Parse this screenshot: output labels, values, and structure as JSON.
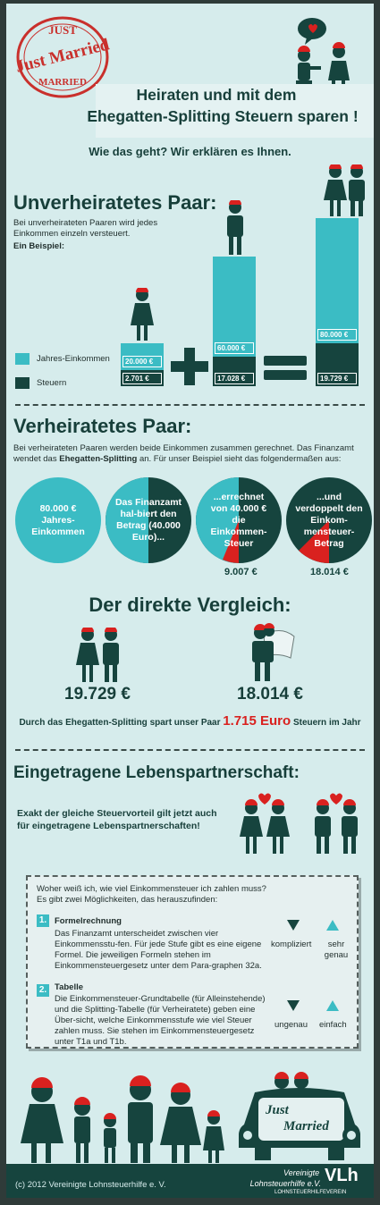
{
  "header": {
    "stamp_line1": "JUST",
    "stamp_line2": "Just Married",
    "stamp_line3": "MARRIED",
    "title_line1": "Heiraten und mit dem",
    "title_line2": "Ehegatten-Splitting Steuern sparen !",
    "subtitle": "Wie das geht? Wir erklären es Ihnen."
  },
  "unmarried": {
    "heading": "Unverheiratetes Paar:",
    "intro": "Bei unverheirateten Paaren wird jedes Einkommen einzeln versteuert.",
    "example": "Ein Beispiel:",
    "legend_income": "Jahres-Einkommen",
    "legend_tax": "Steuern",
    "bars": [
      {
        "income": "20.000 €",
        "tax": "2.701 €"
      },
      {
        "income": "60.000 €",
        "tax": "17.028 €"
      },
      {
        "income": "80.000 €",
        "tax": "19.729 €"
      }
    ]
  },
  "married": {
    "heading": "Verheiratetes Paar:",
    "intro_1": "Bei verheirateten Paaren werden beide Einkommen zusammen gerechnet. Das Finanzamt wendet das ",
    "intro_bold": "Ehegatten-Splitting",
    "intro_2": " an. Für unser Beispiel sieht das folgendermaßen aus:",
    "circle1": "80.000 € Jahres-Einkommen",
    "circle2": "Das Finanzamt hal-biert den Betrag (40.000 Euro)...",
    "circle3": "...errechnet von 40.000 € die Einkommen-Steuer",
    "circle4": "...und verdoppelt den Einkom-mensteuer-Betrag",
    "value3": "9.007 €",
    "value4": "18.014 €"
  },
  "comparison": {
    "heading": "Der direkte Vergleich:",
    "left_value": "19.729 €",
    "right_value": "18.014 €",
    "summary_1": "Durch das Ehegatten-Splitting spart unser Paar",
    "summary_amount": "1.715 Euro",
    "summary_2": "Steuern im Jahr"
  },
  "partnership": {
    "heading": "Eingetragene Lebenspartnerschaft:",
    "text_line1": "Exakt der gleiche Steuervorteil gilt jetzt auch",
    "text_line2": "für eingetragene Lebenspartnerschaften!"
  },
  "info": {
    "question": "Woher weiß ich, wie viel Einkommensteuer ich zahlen muss?",
    "intro": "Es gibt zwei Möglichkeiten, das herauszufinden:",
    "item1_num": "1.",
    "item1_title": "Formelrechnung",
    "item1_text": "Das Finanzamt unterscheidet zwischen vier Einkommensstu-fen. Für jede Stufe gibt es eine eigene Formel. Die jeweiligen Formeln stehen im Einkommensteuergesetz unter dem Para-graphen 32a.",
    "item1_down": "kompliziert",
    "item1_up": "sehr genau",
    "item2_num": "2.",
    "item2_title": "Tabelle",
    "item2_text": "Die Einkommensteuer-Grundtabelle (für Alleinstehende) und die Splitting-Tabelle (für Verheiratete) geben eine Über-sicht, welche Einkommensstufe wie viel Steuer zahlen muss. Sie stehen im Einkommensteuergesetz unter T1a und T1b.",
    "item2_down": "ungenau",
    "item2_up": "einfach"
  },
  "car": {
    "sign_line1": "Just",
    "sign_line2": "Married"
  },
  "footer": {
    "copyright": "(c) 2012 Vereinigte Lohnsteuerhilfe e. V.",
    "logo_line1": "Vereinigte",
    "logo_line2": "Lohnsteuerhilfe e.V.",
    "logo_sub": "LOHNSTEUERHILFEVEREIN",
    "logo_mark": "VLh"
  },
  "colors": {
    "teal": "#3bbcc4",
    "dark_green": "#16443e",
    "red": "#d9211f",
    "background": "#d6ecec"
  }
}
